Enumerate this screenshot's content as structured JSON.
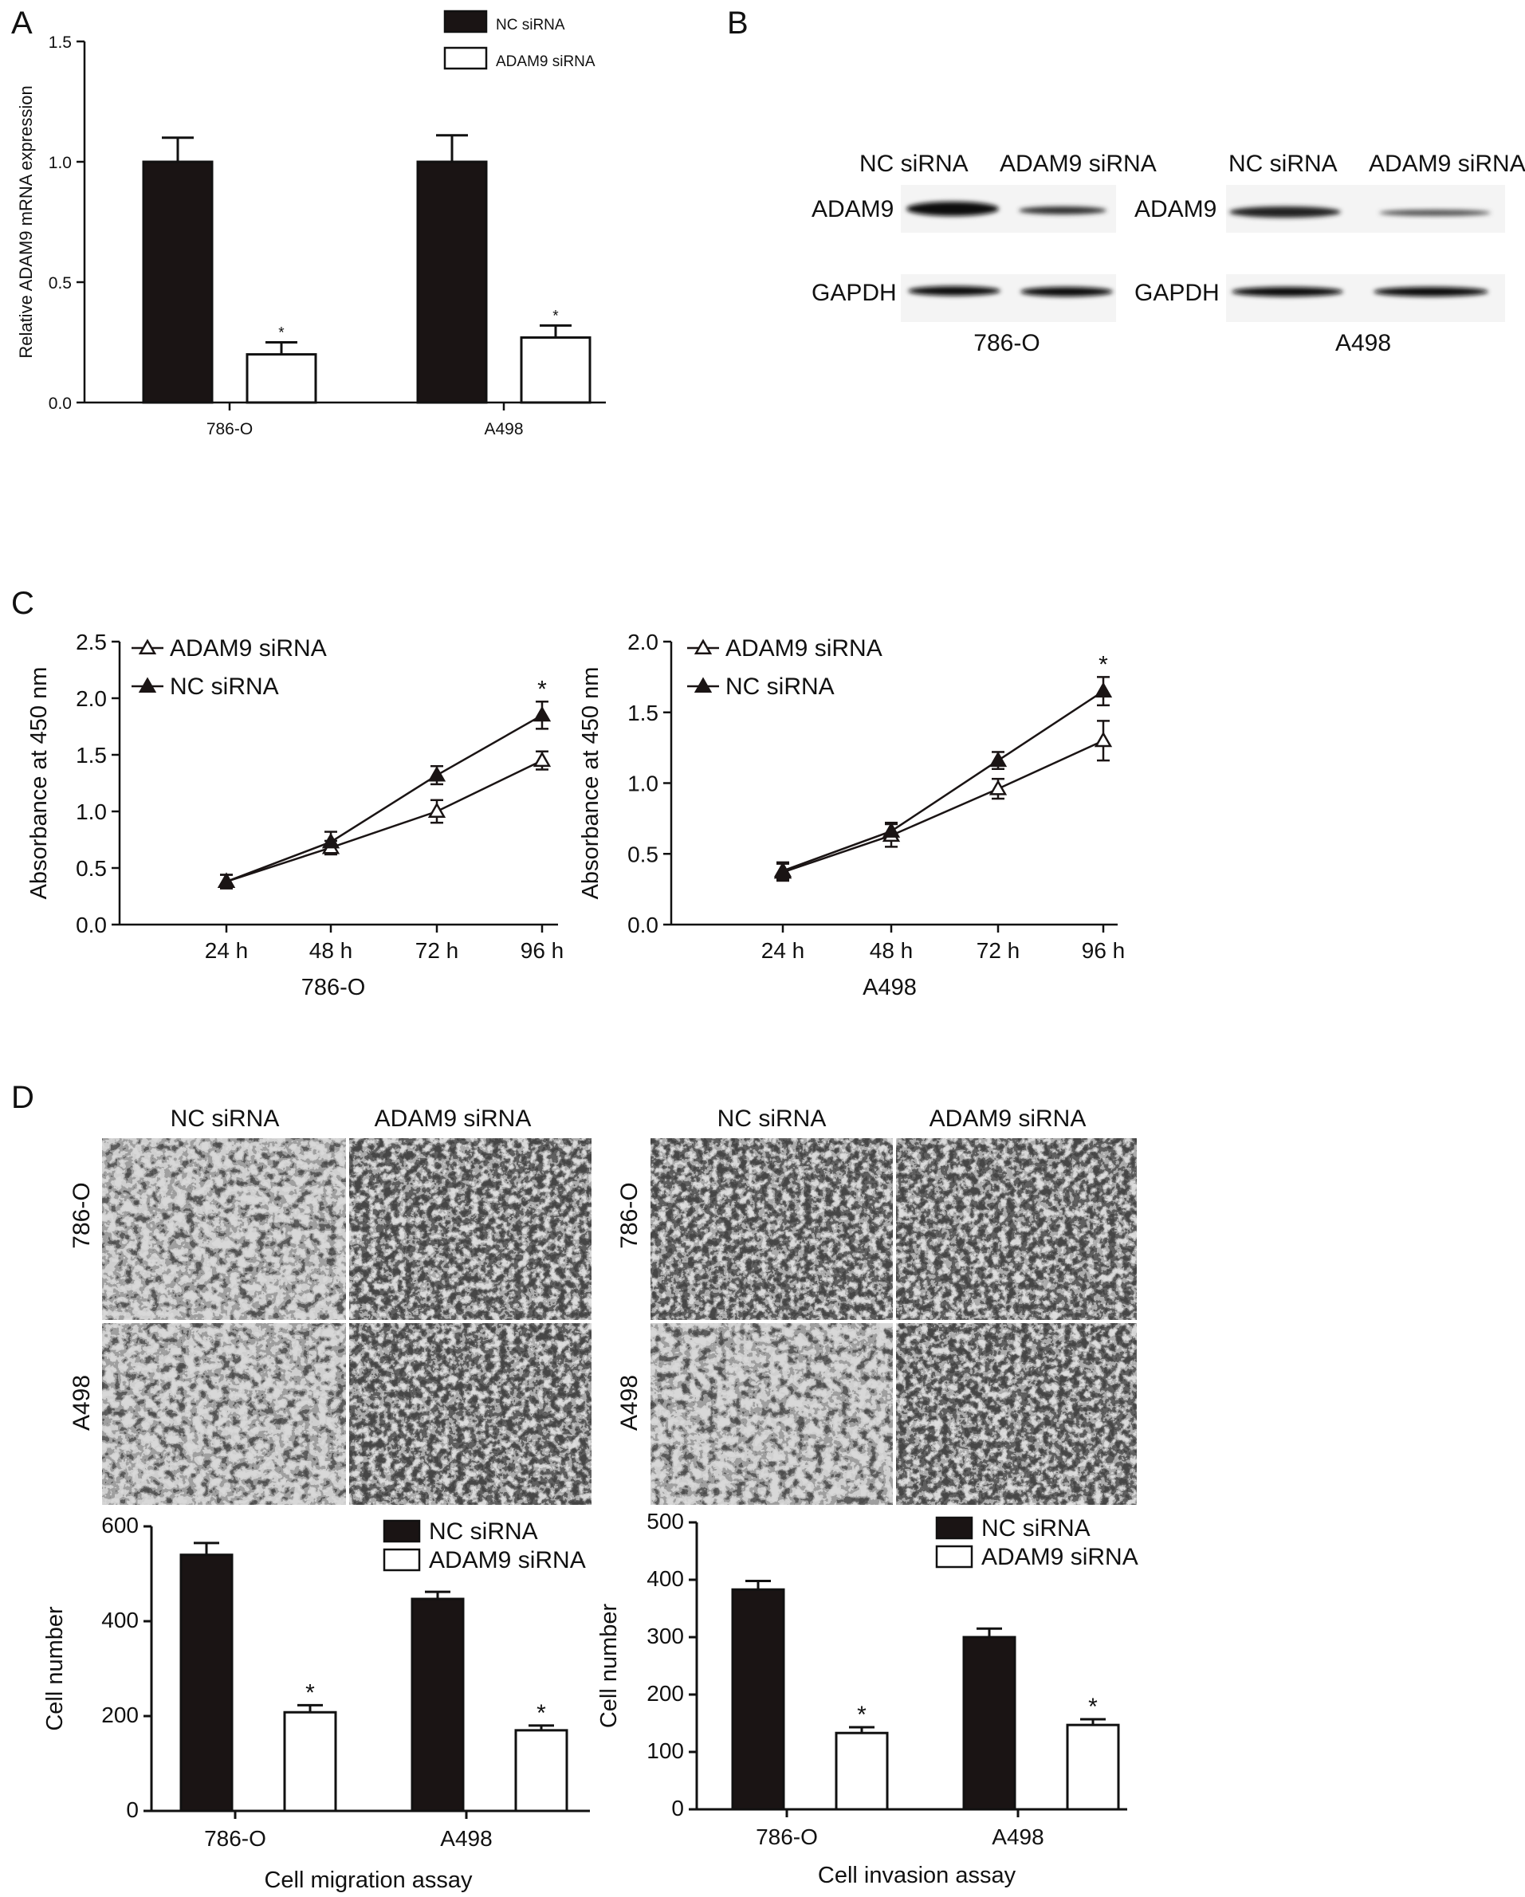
{
  "panels": {
    "A": "A",
    "B": "B",
    "C": "C",
    "D": "D"
  },
  "series_labels": {
    "nc": "NC siRNA",
    "adam9": "ADAM9 siRNA"
  },
  "colors": {
    "nc_fill": "#1a1414",
    "adam9_fill": "#ffffff",
    "stroke": "#111111"
  },
  "western": {
    "cell_lines": [
      "786-O",
      "A498"
    ],
    "col_labels": [
      "NC siRNA",
      "ADAM9 siRNA"
    ],
    "row_labels": [
      "ADAM9",
      "GAPDH"
    ]
  },
  "micrographs": {
    "migration_cols": [
      "NC siRNA",
      "ADAM9 siRNA"
    ],
    "invasion_cols": [
      "NC siRNA",
      "ADAM9 siRNA"
    ],
    "rows": [
      "786-O",
      "A498"
    ]
  },
  "chart_data": [
    {
      "id": "A",
      "type": "bar",
      "categories": [
        "786-O",
        "A498"
      ],
      "series": [
        {
          "name": "NC siRNA",
          "values": [
            1.0,
            1.0
          ],
          "errors": [
            0.1,
            0.11
          ]
        },
        {
          "name": "ADAM9 siRNA",
          "values": [
            0.2,
            0.27
          ],
          "errors": [
            0.05,
            0.05
          ]
        }
      ],
      "significance": [
        {
          "category": "786-O",
          "series": "ADAM9 siRNA",
          "mark": "*"
        },
        {
          "category": "A498",
          "series": "ADAM9 siRNA",
          "mark": "*"
        }
      ],
      "ylabel": "Relative ADAM9 mRNA expression",
      "xlabel": "",
      "ylim": [
        0,
        1.5
      ],
      "yticks": [
        0.0,
        0.5,
        1.0,
        1.5
      ],
      "ytick_labels": [
        "0.0",
        "0.5",
        "1.0",
        "1.5"
      ],
      "legend": "top"
    },
    {
      "id": "C-786-O",
      "type": "line",
      "x": [
        "24 h",
        "48 h",
        "72 h",
        "96 h"
      ],
      "series": [
        {
          "name": "ADAM9 siRNA",
          "marker": "open-triangle",
          "values": [
            0.38,
            0.68,
            1.0,
            1.45
          ],
          "errors": [
            0.06,
            0.06,
            0.1,
            0.08
          ]
        },
        {
          "name": "NC siRNA",
          "marker": "filled-triangle",
          "values": [
            0.38,
            0.73,
            1.32,
            1.85
          ],
          "errors": [
            0.06,
            0.09,
            0.08,
            0.12
          ]
        }
      ],
      "significance": [
        {
          "x": "96 h",
          "mark": "*"
        }
      ],
      "ylabel": "Absorbance at 450 nm",
      "xlabel": "786-O",
      "ylim": [
        0,
        2.5
      ],
      "yticks": [
        0.0,
        0.5,
        1.0,
        1.5,
        2.0,
        2.5
      ],
      "ytick_labels": [
        "0.0",
        "0.5",
        "1.0",
        "1.5",
        "2.0",
        "2.5"
      ],
      "legend": "top-left"
    },
    {
      "id": "C-A498",
      "type": "line",
      "x": [
        "24 h",
        "48 h",
        "72 h",
        "96 h"
      ],
      "series": [
        {
          "name": "ADAM9 siRNA",
          "marker": "open-triangle",
          "values": [
            0.37,
            0.63,
            0.96,
            1.3
          ],
          "errors": [
            0.06,
            0.08,
            0.07,
            0.14
          ]
        },
        {
          "name": "NC siRNA",
          "marker": "filled-triangle",
          "values": [
            0.38,
            0.66,
            1.16,
            1.65
          ],
          "errors": [
            0.06,
            0.06,
            0.06,
            0.1
          ]
        }
      ],
      "significance": [
        {
          "x": "96 h",
          "mark": "*"
        }
      ],
      "ylabel": "Absorbance at 450 nm",
      "xlabel": "A498",
      "ylim": [
        0,
        2.0
      ],
      "yticks": [
        0.0,
        0.5,
        1.0,
        1.5,
        2.0
      ],
      "ytick_labels": [
        "0.0",
        "0.5",
        "1.0",
        "1.5",
        "2.0"
      ],
      "legend": "top-left"
    },
    {
      "id": "D-migration",
      "type": "bar",
      "categories": [
        "786-O",
        "A498"
      ],
      "series": [
        {
          "name": "NC siRNA",
          "values": [
            540,
            447
          ],
          "errors": [
            25,
            15
          ]
        },
        {
          "name": "ADAM9 siRNA",
          "values": [
            208,
            170
          ],
          "errors": [
            15,
            10
          ]
        }
      ],
      "significance": [
        {
          "category": "786-O",
          "series": "ADAM9 siRNA",
          "mark": "*"
        },
        {
          "category": "A498",
          "series": "ADAM9 siRNA",
          "mark": "*"
        }
      ],
      "ylabel": "Cell number",
      "xlabel": "Cell migration assay",
      "ylim": [
        0,
        600
      ],
      "yticks": [
        0,
        200,
        400,
        600
      ],
      "ytick_labels": [
        "0",
        "200",
        "400",
        "600"
      ],
      "legend": "top-right"
    },
    {
      "id": "D-invasion",
      "type": "bar",
      "categories": [
        "786-O",
        "A498"
      ],
      "series": [
        {
          "name": "NC siRNA",
          "values": [
            383,
            300
          ],
          "errors": [
            15,
            15
          ]
        },
        {
          "name": "ADAM9 siRNA",
          "values": [
            133,
            147
          ],
          "errors": [
            10,
            10
          ]
        }
      ],
      "significance": [
        {
          "category": "786-O",
          "series": "ADAM9 siRNA",
          "mark": "*"
        },
        {
          "category": "A498",
          "series": "ADAM9 siRNA",
          "mark": "*"
        }
      ],
      "ylabel": "Cell number",
      "xlabel": "Cell invasion assay",
      "ylim": [
        0,
        500
      ],
      "yticks": [
        0,
        100,
        200,
        300,
        400,
        500
      ],
      "ytick_labels": [
        "0",
        "100",
        "200",
        "300",
        "400",
        "500"
      ],
      "legend": "top-right"
    }
  ]
}
